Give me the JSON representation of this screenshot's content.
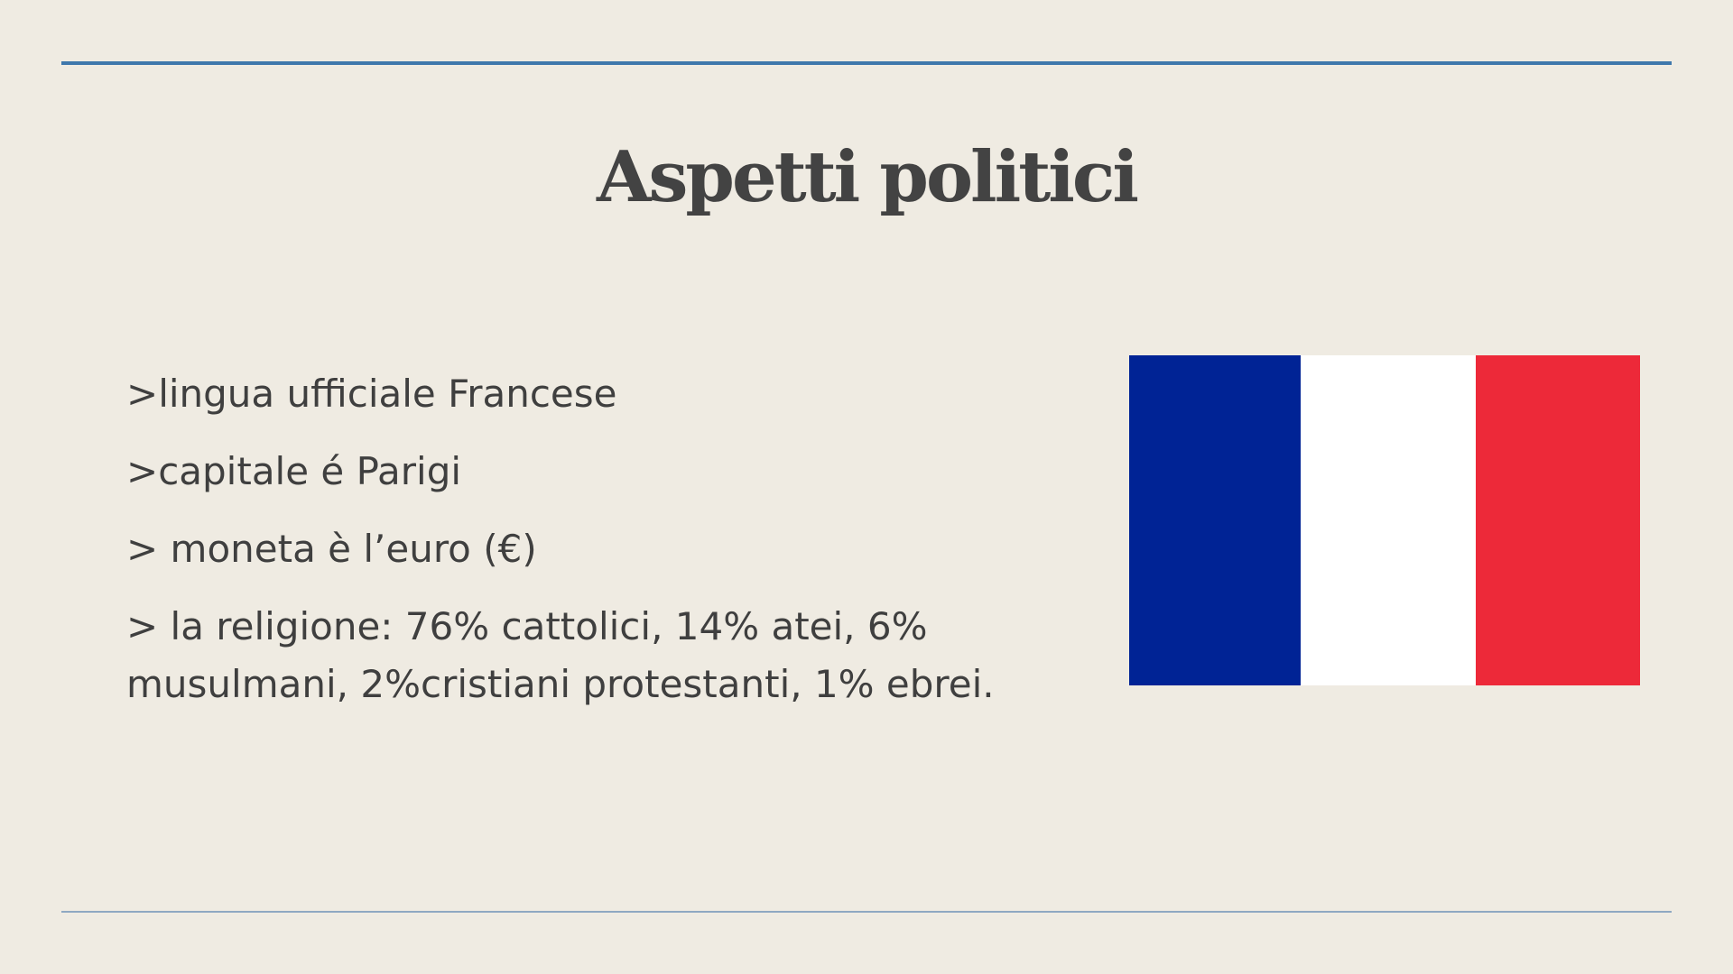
{
  "slide": {
    "title": "Aspetti politici",
    "bullets": [
      ">lingua ufficiale Francese",
      ">capitale é Parigi",
      "> moneta è l’euro (€)",
      "> la religione: 76% cattolici, 14% atei, 6% musulmani, 2%cristiani protestanti, 1% ebrei."
    ]
  },
  "flag": {
    "name": "flag-of-france",
    "colors": {
      "blue": "#002395",
      "white": "#ffffff",
      "red": "#ed2939"
    }
  },
  "theme": {
    "background": "#efebe2",
    "accent_rule": "#3f78ac",
    "text": "#3f3f3f"
  }
}
